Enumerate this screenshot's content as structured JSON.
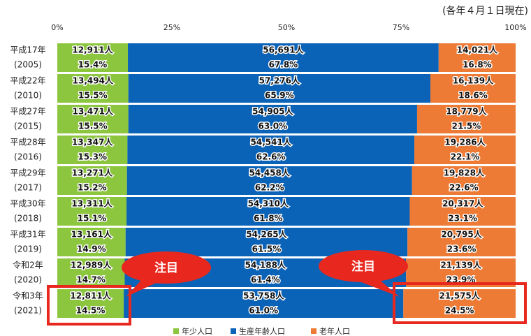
{
  "chart_data": {
    "type": "stacked-bar-horizontal",
    "annotation": "(各年４月１日現在)",
    "callouts": [
      "注目",
      "注目"
    ],
    "categories": [
      [
        "平成17年",
        "(2005)"
      ],
      [
        "平成22年",
        "(2010)"
      ],
      [
        "平成27年",
        "(2015)"
      ],
      [
        "平成28年",
        "(2016)"
      ],
      [
        "平成29年",
        "(2017)"
      ],
      [
        "平成30年",
        "(2018)"
      ],
      [
        "平成31年",
        "(2019)"
      ],
      [
        "令和2年",
        "(2020)"
      ],
      [
        "令和3年",
        "(2021)"
      ]
    ],
    "xlim": [
      0,
      100
    ],
    "xticks": [
      {
        "value": 0,
        "label": "0%"
      },
      {
        "value": 25,
        "label": "25%"
      },
      {
        "value": 50,
        "label": "50%"
      },
      {
        "value": 75,
        "label": "75%"
      },
      {
        "value": 100,
        "label": "100%"
      }
    ],
    "legend": "bottom",
    "series": [
      {
        "name": "年少人口",
        "color": "#8cc63e",
        "values": [
          15.4,
          15.5,
          15.5,
          15.3,
          15.2,
          15.1,
          14.9,
          14.7,
          14.5
        ],
        "value_labels": [
          "15.4%",
          "15.5%",
          "15.5%",
          "15.3%",
          "15.2%",
          "15.1%",
          "14.9%",
          "14.7%",
          "14.5%"
        ],
        "counts": [
          12911,
          13494,
          13471,
          13347,
          13271,
          13311,
          13161,
          12989,
          12811
        ],
        "count_labels": [
          "12,911人",
          "13,494人",
          "13,471人",
          "13,347人",
          "13,271人",
          "13,311人",
          "13,161人",
          "12,989人",
          "12,811人"
        ]
      },
      {
        "name": "生産年齢人口",
        "color": "#0b63b8",
        "values": [
          67.8,
          65.9,
          63.0,
          62.6,
          62.2,
          61.8,
          61.5,
          61.4,
          61.0
        ],
        "value_labels": [
          "67.8%",
          "65.9%",
          "63.0%",
          "62.6%",
          "62.2%",
          "61.8%",
          "61.5%",
          "61.4%",
          "61.0%"
        ],
        "counts": [
          56691,
          57276,
          54905,
          54541,
          54458,
          54310,
          54265,
          54188,
          53758
        ],
        "count_labels": [
          "56,691人",
          "57,276人",
          "54,905人",
          "54,541人",
          "54,458人",
          "54,310人",
          "54,265人",
          "54,188人",
          "53,758人"
        ]
      },
      {
        "name": "老年人口",
        "color": "#ee7b35",
        "values": [
          16.8,
          18.6,
          21.5,
          22.1,
          22.6,
          23.1,
          23.6,
          23.9,
          24.5
        ],
        "value_labels": [
          "16.8%",
          "18.6%",
          "21.5%",
          "22.1%",
          "22.6%",
          "23.1%",
          "23.6%",
          "23.9%",
          "24.5%"
        ],
        "counts": [
          14021,
          16139,
          18779,
          19286,
          19828,
          20317,
          20795,
          21139,
          21575
        ],
        "count_labels": [
          "14,021人",
          "16,139人",
          "18,779人",
          "19,286人",
          "19,828人",
          "20,317人",
          "20,795人",
          "21,139人",
          "21,575人"
        ]
      }
    ]
  }
}
